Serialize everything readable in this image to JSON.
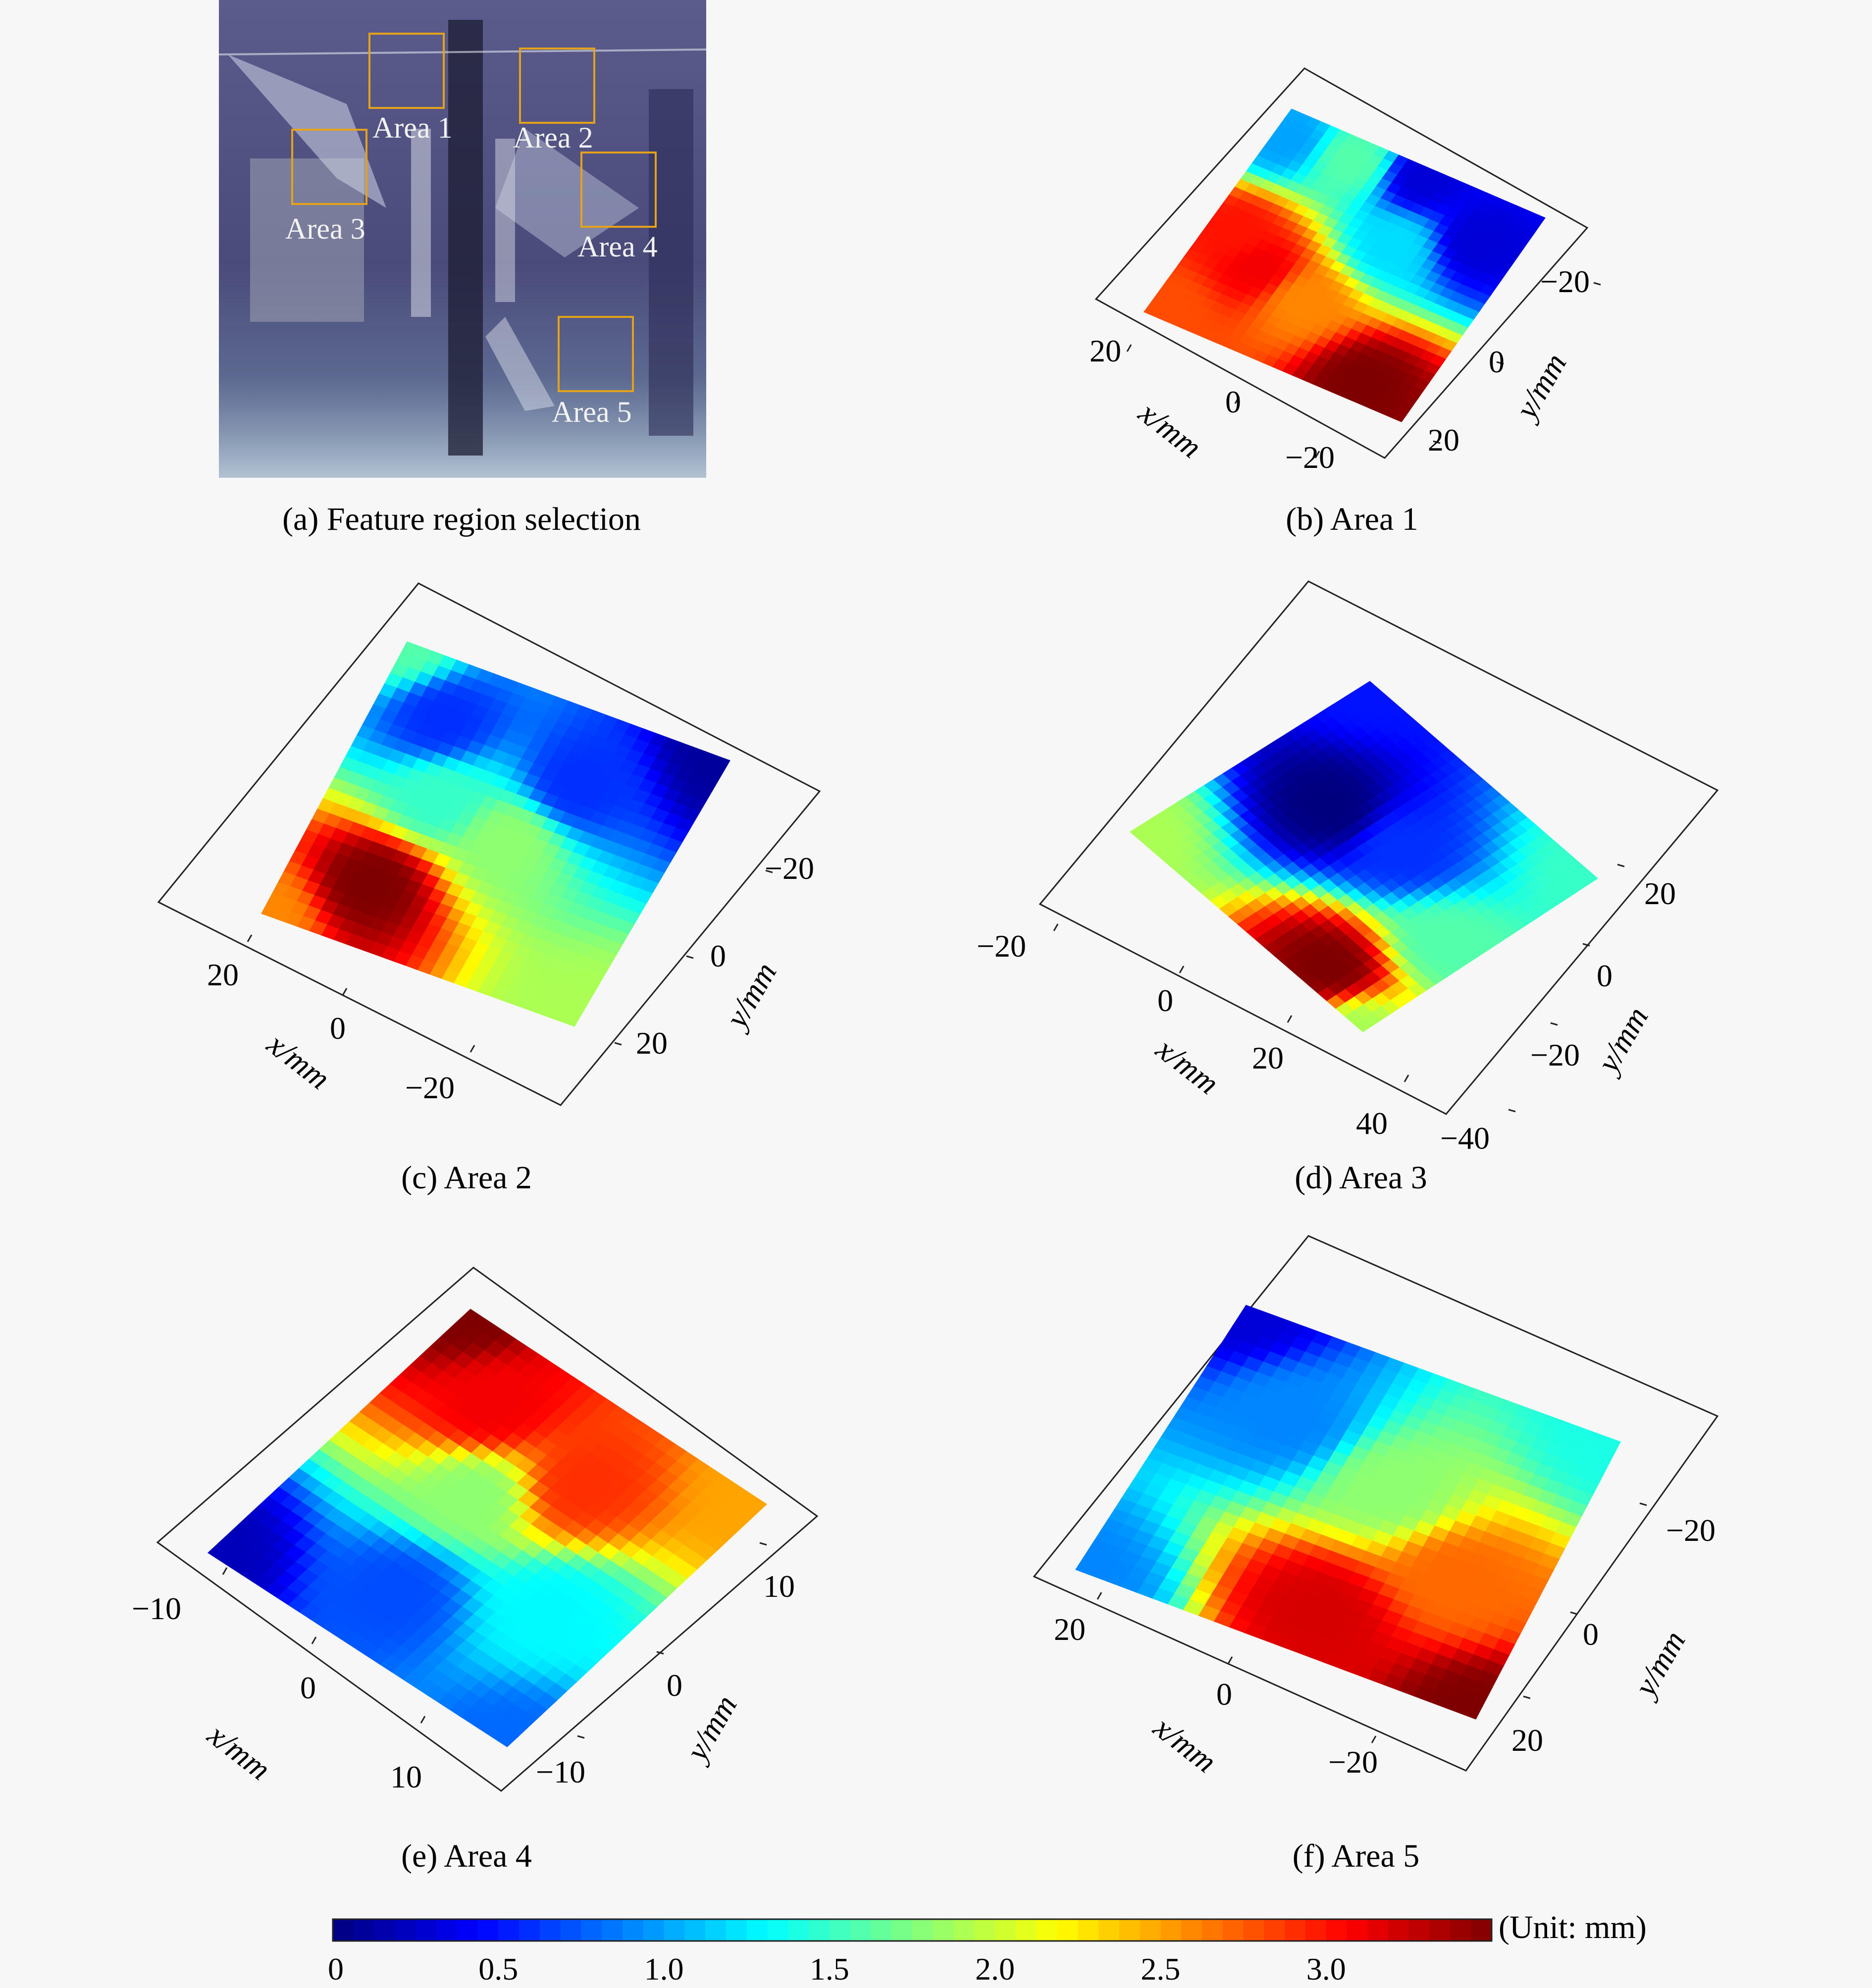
{
  "colors": {
    "frame_line": "#222222",
    "highlight_box": "#e3a21a",
    "photo_base": "#4e4f7e",
    "jet": [
      "#00007f",
      "#0000ff",
      "#007fff",
      "#00ffff",
      "#7fff7f",
      "#ffff00",
      "#ff7f00",
      "#ff0000",
      "#7f0000"
    ]
  },
  "photo": {
    "area_labels": [
      "Area 1",
      "Area 2",
      "Area 3",
      "Area 4",
      "Area 5"
    ],
    "icon": "photograph"
  },
  "captions": {
    "a": "(a) Feature region selection",
    "b": "(b) Area 1",
    "c": "(c) Area 2",
    "d": "(d) Area 3",
    "e": "(e) Area 4",
    "f": "(f) Area 5"
  },
  "axis_labels": {
    "x": "x/mm",
    "y": "y/mm"
  },
  "chart_data": [
    {
      "type": "heatmap",
      "panel": "b",
      "view": "3d-surface-top",
      "x_ticks": [
        "20",
        "0",
        "−20"
      ],
      "y_ticks": [
        "−20",
        "0",
        "20"
      ],
      "z_min": 0,
      "z_max": 3.5,
      "hotspots": [
        {
          "u": 0.1,
          "v": 0.55,
          "z": 3.0
        },
        {
          "u": 0.25,
          "v": 0.65,
          "z": 3.1
        },
        {
          "u": 0.45,
          "v": 0.7,
          "z": 2.6
        },
        {
          "u": 0.8,
          "v": 0.92,
          "z": 3.5
        },
        {
          "u": 0.05,
          "v": 0.95,
          "z": 2.8
        },
        {
          "u": 0.55,
          "v": 0.05,
          "z": 0.3
        },
        {
          "u": 0.85,
          "v": 0.2,
          "z": 0.3
        },
        {
          "u": 0.05,
          "v": 0.12,
          "z": 1.0
        },
        {
          "u": 0.3,
          "v": 0.1,
          "z": 1.6
        },
        {
          "u": 0.6,
          "v": 0.35,
          "z": 1.2
        }
      ]
    },
    {
      "type": "heatmap",
      "panel": "c",
      "view": "3d-surface-top",
      "x_ticks": [
        "20",
        "0",
        "−20"
      ],
      "y_ticks": [
        "−20",
        "0",
        "20"
      ],
      "z_min": 0,
      "z_max": 3.5,
      "hotspots": [
        {
          "u": 0.0,
          "v": 0.0,
          "z": 1.6
        },
        {
          "u": 0.0,
          "v": 1.0,
          "z": 2.6
        },
        {
          "u": 1.0,
          "v": 0.0,
          "z": 0.1
        },
        {
          "u": 1.0,
          "v": 1.0,
          "z": 1.9
        },
        {
          "u": 0.25,
          "v": 0.78,
          "z": 3.5
        },
        {
          "u": 0.2,
          "v": 0.2,
          "z": 0.6
        },
        {
          "u": 0.3,
          "v": 0.45,
          "z": 1.5
        },
        {
          "u": 0.55,
          "v": 0.5,
          "z": 1.8
        },
        {
          "u": 0.65,
          "v": 0.25,
          "z": 0.6
        }
      ]
    },
    {
      "type": "heatmap",
      "panel": "d",
      "view": "3d-surface-top",
      "x_ticks": [
        "−20",
        "0",
        "20",
        "40"
      ],
      "y_ticks": [
        "20",
        "0",
        "−20",
        "−40"
      ],
      "z_min": 0,
      "z_max": 3.5,
      "hotspots": [
        {
          "u": 0.0,
          "v": 0.0,
          "z": 0.5
        },
        {
          "u": 1.0,
          "v": 0.0,
          "z": 1.5
        },
        {
          "u": 1.0,
          "v": 1.0,
          "z": 1.9
        },
        {
          "u": 0.0,
          "v": 1.0,
          "z": 1.9
        },
        {
          "u": 0.3,
          "v": 0.45,
          "z": 0.0
        },
        {
          "u": 0.55,
          "v": 0.4,
          "z": 0.6
        },
        {
          "u": 0.75,
          "v": 0.9,
          "z": 3.5
        },
        {
          "u": 0.9,
          "v": 0.55,
          "z": 1.6
        }
      ]
    },
    {
      "type": "heatmap",
      "panel": "e",
      "view": "3d-surface-top",
      "x_ticks": [
        "−10",
        "0",
        "10"
      ],
      "y_ticks": [
        "10",
        "0",
        "−10"
      ],
      "z_min": 0,
      "z_max": 3.5,
      "hotspots": [
        {
          "u": 0.0,
          "v": 0.0,
          "z": 3.5
        },
        {
          "u": 0.0,
          "v": 1.0,
          "z": 0.2
        },
        {
          "u": 1.0,
          "v": 0.0,
          "z": 2.5
        },
        {
          "u": 1.0,
          "v": 1.0,
          "z": 0.8
        },
        {
          "u": 0.4,
          "v": 0.45,
          "z": 1.8
        },
        {
          "u": 0.25,
          "v": 0.2,
          "z": 3.1
        },
        {
          "u": 0.6,
          "v": 0.25,
          "z": 2.9
        },
        {
          "u": 0.45,
          "v": 0.8,
          "z": 0.7
        },
        {
          "u": 0.8,
          "v": 0.6,
          "z": 1.3
        }
      ]
    },
    {
      "type": "heatmap",
      "panel": "f",
      "view": "3d-surface-top",
      "x_ticks": [
        "20",
        "0",
        "−20"
      ],
      "y_ticks": [
        "−20",
        "0",
        "20"
      ],
      "z_min": 0,
      "z_max": 3.5,
      "hotspots": [
        {
          "u": 0.0,
          "v": 0.0,
          "z": 0.3
        },
        {
          "u": 1.0,
          "v": 0.0,
          "z": 1.4
        },
        {
          "u": 0.0,
          "v": 1.0,
          "z": 0.9
        },
        {
          "u": 1.0,
          "v": 1.0,
          "z": 3.5
        },
        {
          "u": 0.55,
          "v": 0.85,
          "z": 3.2
        },
        {
          "u": 0.55,
          "v": 0.4,
          "z": 1.8
        },
        {
          "u": 0.25,
          "v": 0.3,
          "z": 0.9
        },
        {
          "u": 0.8,
          "v": 0.6,
          "z": 2.7
        }
      ]
    }
  ],
  "colorbar": {
    "ticks": [
      "0",
      "0.5",
      "1.0",
      "1.5",
      "2.0",
      "2.5",
      "3.0"
    ],
    "tick_values": [
      0,
      0.5,
      1.0,
      1.5,
      2.0,
      2.5,
      3.0
    ],
    "min": 0,
    "max": 3.5,
    "unit_label": "(Unit: mm)"
  }
}
